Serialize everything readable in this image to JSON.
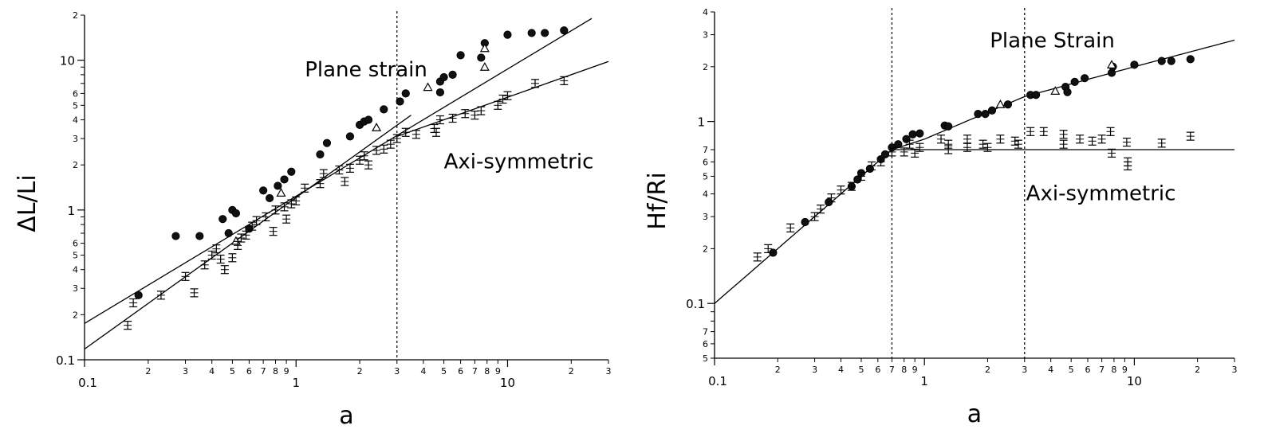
{
  "chart_data": [
    {
      "type": "scatter",
      "title": "",
      "xlabel": "a",
      "ylabel": "ΔL/Li",
      "xscale": "log",
      "yscale": "log",
      "xlim": [
        0.1,
        30
      ],
      "ylim": [
        0.1,
        20
      ],
      "grid": false,
      "x_major_ticks": [
        {
          "v": 0.1,
          "label": "0.1"
        },
        {
          "v": 1,
          "label": "1"
        },
        {
          "v": 10,
          "label": "10"
        }
      ],
      "x_minor_ticks": [
        {
          "v": 0.2,
          "label": "2"
        },
        {
          "v": 0.3,
          "label": "3"
        },
        {
          "v": 0.4,
          "label": "4"
        },
        {
          "v": 0.5,
          "label": "5"
        },
        {
          "v": 0.6,
          "label": "6"
        },
        {
          "v": 0.7,
          "label": "7"
        },
        {
          "v": 0.8,
          "label": "8"
        },
        {
          "v": 0.9,
          "label": "9"
        },
        {
          "v": 2,
          "label": "2"
        },
        {
          "v": 3,
          "label": "3"
        },
        {
          "v": 4,
          "label": "4"
        },
        {
          "v": 5,
          "label": "5"
        },
        {
          "v": 6,
          "label": "6"
        },
        {
          "v": 7,
          "label": "7"
        },
        {
          "v": 8,
          "label": "8"
        },
        {
          "v": 9,
          "label": "9"
        },
        {
          "v": 20,
          "label": "2"
        },
        {
          "v": 30,
          "label": "3"
        }
      ],
      "y_major_ticks": [
        {
          "v": 0.1,
          "label": "0.1"
        },
        {
          "v": 1,
          "label": "1"
        },
        {
          "v": 10,
          "label": "10"
        }
      ],
      "y_minor_ticks": [
        {
          "v": 0.2,
          "label": "2"
        },
        {
          "v": 0.3,
          "label": "3"
        },
        {
          "v": 0.4,
          "label": "4"
        },
        {
          "v": 0.5,
          "label": "5"
        },
        {
          "v": 0.6,
          "label": "6"
        },
        {
          "v": 2,
          "label": "2"
        },
        {
          "v": 3,
          "label": "3"
        },
        {
          "v": 4,
          "label": "4"
        },
        {
          "v": 5,
          "label": "5"
        },
        {
          "v": 6,
          "label": "6"
        },
        {
          "v": 20,
          "label": "2"
        }
      ],
      "y_unlabeled_ticks": [
        0.7,
        0.8,
        0.9,
        7,
        8,
        9
      ],
      "vlines": [
        3
      ],
      "annotations": [
        {
          "text": "Plane strain",
          "x": 1.1,
          "y": 7.8
        },
        {
          "text": "Axi-symmetric",
          "x": 5.0,
          "y": 1.9
        }
      ],
      "fit_lines": [
        {
          "name": "",
          "points": [
            [
              0.1,
              0.175
            ],
            [
              25,
              19
            ]
          ]
        },
        {
          "name": "",
          "points": [
            [
              0.1,
              0.118
            ],
            [
              3.5,
              4.3
            ]
          ]
        },
        {
          "name": "",
          "points": [
            [
              3,
              3.1
            ],
            [
              30,
              9.8
            ]
          ]
        }
      ],
      "series": [
        {
          "name": "",
          "marker": "filled-circle",
          "points": [
            [
              0.18,
              0.27
            ],
            [
              0.27,
              0.67
            ],
            [
              0.35,
              0.67
            ],
            [
              0.45,
              0.87
            ],
            [
              0.48,
              0.7
            ],
            [
              0.5,
              1.0
            ],
            [
              0.52,
              0.95
            ],
            [
              0.6,
              0.75
            ],
            [
              0.7,
              1.35
            ],
            [
              0.75,
              1.2
            ],
            [
              0.82,
              1.45
            ],
            [
              0.88,
              1.6
            ],
            [
              0.95,
              1.8
            ],
            [
              1.3,
              2.35
            ],
            [
              1.4,
              2.8
            ],
            [
              1.8,
              3.1
            ],
            [
              2.0,
              3.7
            ],
            [
              2.1,
              3.9
            ],
            [
              2.2,
              4.0
            ],
            [
              2.6,
              4.7
            ],
            [
              3.1,
              5.3
            ],
            [
              3.3,
              6.0
            ],
            [
              4.8,
              6.1
            ],
            [
              4.8,
              7.2
            ],
            [
              5.0,
              7.7
            ],
            [
              5.5,
              8.0
            ],
            [
              6.0,
              10.8
            ],
            [
              7.5,
              10.4
            ],
            [
              7.8,
              13.0
            ],
            [
              10,
              14.8
            ],
            [
              13,
              15.2
            ],
            [
              15,
              15.2
            ],
            [
              18.5,
              15.8
            ]
          ]
        },
        {
          "name": "",
          "marker": "open-triangle",
          "points": [
            [
              0.52,
              0.62
            ],
            [
              0.85,
              1.3
            ],
            [
              2.4,
              3.55
            ],
            [
              4.2,
              6.6
            ],
            [
              7.8,
              9.0
            ],
            [
              7.8,
              12.0
            ]
          ]
        },
        {
          "name": "",
          "marker": "error-bar",
          "points": [
            [
              0.16,
              0.17
            ],
            [
              0.17,
              0.24
            ],
            [
              0.23,
              0.27
            ],
            [
              0.3,
              0.36
            ],
            [
              0.33,
              0.28
            ],
            [
              0.37,
              0.43
            ],
            [
              0.4,
              0.5
            ],
            [
              0.42,
              0.55
            ],
            [
              0.44,
              0.47
            ],
            [
              0.46,
              0.4
            ],
            [
              0.5,
              0.48
            ],
            [
              0.53,
              0.58
            ],
            [
              0.55,
              0.65
            ],
            [
              0.58,
              0.68
            ],
            [
              0.62,
              0.78
            ],
            [
              0.65,
              0.85
            ],
            [
              0.72,
              0.9
            ],
            [
              0.78,
              0.72
            ],
            [
              0.8,
              1.0
            ],
            [
              0.88,
              1.05
            ],
            [
              0.9,
              0.87
            ],
            [
              0.95,
              1.1
            ],
            [
              1.0,
              1.15
            ],
            [
              1.1,
              1.4
            ],
            [
              1.3,
              1.5
            ],
            [
              1.35,
              1.75
            ],
            [
              1.6,
              1.85
            ],
            [
              1.7,
              1.55
            ],
            [
              1.8,
              1.9
            ],
            [
              2.0,
              2.15
            ],
            [
              2.1,
              2.3
            ],
            [
              2.2,
              2.0
            ],
            [
              2.4,
              2.5
            ],
            [
              2.6,
              2.55
            ],
            [
              2.8,
              2.75
            ],
            [
              3.0,
              3.0
            ],
            [
              3.3,
              3.3
            ],
            [
              3.7,
              3.2
            ],
            [
              4.5,
              3.5
            ],
            [
              4.6,
              3.3
            ],
            [
              4.8,
              4.0
            ],
            [
              5.5,
              4.1
            ],
            [
              6.3,
              4.4
            ],
            [
              7.0,
              4.3
            ],
            [
              7.5,
              4.6
            ],
            [
              9.0,
              5.0
            ],
            [
              9.5,
              5.5
            ],
            [
              10,
              5.8
            ],
            [
              13.5,
              7.0
            ],
            [
              18.5,
              7.3
            ]
          ]
        }
      ]
    },
    {
      "type": "scatter",
      "title": "",
      "xlabel": "a",
      "ylabel": "Hf/Ri",
      "xscale": "log",
      "yscale": "log",
      "xlim": [
        0.1,
        30
      ],
      "ylim": [
        0.05,
        4
      ],
      "grid": false,
      "x_major_ticks": [
        {
          "v": 0.1,
          "label": "0.1"
        },
        {
          "v": 1,
          "label": "1"
        },
        {
          "v": 10,
          "label": "10"
        }
      ],
      "x_minor_ticks": [
        {
          "v": 0.2,
          "label": "2"
        },
        {
          "v": 0.3,
          "label": "3"
        },
        {
          "v": 0.4,
          "label": "4"
        },
        {
          "v": 0.5,
          "label": "5"
        },
        {
          "v": 0.6,
          "label": "6"
        },
        {
          "v": 0.7,
          "label": "7"
        },
        {
          "v": 0.8,
          "label": "8"
        },
        {
          "v": 0.9,
          "label": "9"
        },
        {
          "v": 2,
          "label": "2"
        },
        {
          "v": 3,
          "label": "3"
        },
        {
          "v": 4,
          "label": "4"
        },
        {
          "v": 5,
          "label": "5"
        },
        {
          "v": 6,
          "label": "6"
        },
        {
          "v": 7,
          "label": "7"
        },
        {
          "v": 8,
          "label": "8"
        },
        {
          "v": 9,
          "label": "9"
        },
        {
          "v": 20,
          "label": "2"
        },
        {
          "v": 30,
          "label": "3"
        }
      ],
      "y_major_ticks": [
        {
          "v": 0.1,
          "label": "0.1"
        },
        {
          "v": 1,
          "label": "1"
        }
      ],
      "y_minor_ticks": [
        {
          "v": 0.05,
          "label": "5"
        },
        {
          "v": 0.06,
          "label": "6"
        },
        {
          "v": 0.07,
          "label": "7"
        },
        {
          "v": 0.2,
          "label": "2"
        },
        {
          "v": 0.3,
          "label": "3"
        },
        {
          "v": 0.4,
          "label": "4"
        },
        {
          "v": 0.5,
          "label": "5"
        },
        {
          "v": 0.6,
          "label": "6"
        },
        {
          "v": 0.7,
          "label": "7"
        },
        {
          "v": 2,
          "label": "2"
        },
        {
          "v": 3,
          "label": "3"
        },
        {
          "v": 4,
          "label": "4"
        }
      ],
      "y_unlabeled_ticks": [
        0.08,
        0.09
      ],
      "vlines": [
        0.7,
        3
      ],
      "annotations": [
        {
          "text": "Plane Strain",
          "x": 2.05,
          "y": 2.55
        },
        {
          "text": "Axi-symmetric",
          "x": 3.05,
          "y": 0.37
        }
      ],
      "fit_lines": [
        {
          "name": "",
          "curve": [
            [
              0.1,
              0.1
            ],
            [
              0.7,
              0.7
            ],
            [
              1.0,
              0.8
            ],
            [
              3.0,
              1.37
            ],
            [
              10,
              2.0
            ],
            [
              30,
              2.8
            ]
          ]
        },
        {
          "name": "",
          "curve": [
            [
              0.7,
              0.7
            ],
            [
              30,
              0.7
            ]
          ]
        }
      ],
      "series": [
        {
          "name": "",
          "marker": "filled-circle",
          "points": [
            [
              0.19,
              0.19
            ],
            [
              0.27,
              0.28
            ],
            [
              0.35,
              0.36
            ],
            [
              0.45,
              0.44
            ],
            [
              0.48,
              0.48
            ],
            [
              0.5,
              0.52
            ],
            [
              0.55,
              0.55
            ],
            [
              0.62,
              0.62
            ],
            [
              0.65,
              0.66
            ],
            [
              0.7,
              0.72
            ],
            [
              0.75,
              0.75
            ],
            [
              0.82,
              0.8
            ],
            [
              0.88,
              0.85
            ],
            [
              0.95,
              0.86
            ],
            [
              1.25,
              0.95
            ],
            [
              1.3,
              0.94
            ],
            [
              1.8,
              1.1
            ],
            [
              1.95,
              1.1
            ],
            [
              2.1,
              1.15
            ],
            [
              2.5,
              1.24
            ],
            [
              3.2,
              1.4
            ],
            [
              3.4,
              1.4
            ],
            [
              4.7,
              1.55
            ],
            [
              4.8,
              1.45
            ],
            [
              5.2,
              1.65
            ],
            [
              5.8,
              1.73
            ],
            [
              7.8,
              1.85
            ],
            [
              7.9,
              2.0
            ],
            [
              10,
              2.05
            ],
            [
              13.5,
              2.15
            ],
            [
              15,
              2.15
            ],
            [
              18.5,
              2.2
            ]
          ]
        },
        {
          "name": "",
          "marker": "open-triangle",
          "points": [
            [
              2.3,
              1.24
            ],
            [
              4.2,
              1.47
            ],
            [
              7.8,
              2.05
            ]
          ]
        },
        {
          "name": "",
          "marker": "error-bar",
          "points": [
            [
              0.16,
              0.18
            ],
            [
              0.18,
              0.2
            ],
            [
              0.23,
              0.26
            ],
            [
              0.3,
              0.3
            ],
            [
              0.32,
              0.33
            ],
            [
              0.36,
              0.38
            ],
            [
              0.4,
              0.42
            ],
            [
              0.45,
              0.44
            ],
            [
              0.5,
              0.5
            ],
            [
              0.56,
              0.57
            ],
            [
              0.62,
              0.6
            ],
            [
              0.7,
              0.68
            ],
            [
              0.8,
              0.68
            ],
            [
              0.85,
              0.75
            ],
            [
              0.9,
              0.67
            ],
            [
              0.95,
              0.72
            ],
            [
              1.2,
              0.8
            ],
            [
              1.3,
              0.75
            ],
            [
              1.3,
              0.7
            ],
            [
              1.6,
              0.8
            ],
            [
              1.6,
              0.72
            ],
            [
              1.9,
              0.75
            ],
            [
              2.0,
              0.72
            ],
            [
              2.3,
              0.8
            ],
            [
              2.7,
              0.78
            ],
            [
              2.8,
              0.75
            ],
            [
              3.2,
              0.88
            ],
            [
              3.7,
              0.88
            ],
            [
              4.6,
              0.85
            ],
            [
              4.6,
              0.75
            ],
            [
              5.5,
              0.8
            ],
            [
              6.3,
              0.78
            ],
            [
              7.0,
              0.8
            ],
            [
              7.7,
              0.88
            ],
            [
              7.8,
              0.67
            ],
            [
              9.2,
              0.77
            ],
            [
              9.3,
              0.6
            ],
            [
              9.3,
              0.57
            ],
            [
              13.5,
              0.76
            ],
            [
              18.5,
              0.83
            ]
          ]
        }
      ]
    }
  ]
}
